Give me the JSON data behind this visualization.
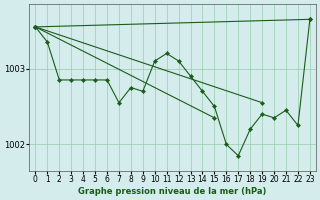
{
  "bg_color": "#d4ecec",
  "line_color": "#1a5c1a",
  "xlabel": "Graphe pression niveau de la mer (hPa)",
  "xlim": [
    -0.5,
    23.5
  ],
  "ylim": [
    1001.65,
    1003.85
  ],
  "yticks": [
    1002,
    1003
  ],
  "xticks": [
    0,
    1,
    2,
    3,
    4,
    5,
    6,
    7,
    8,
    9,
    10,
    11,
    12,
    13,
    14,
    15,
    16,
    17,
    18,
    19,
    20,
    21,
    22,
    23
  ],
  "series": [
    {
      "x": [
        0,
        23
      ],
      "y": [
        1003.55,
        1003.65
      ]
    },
    {
      "x": [
        0,
        19
      ],
      "y": [
        1003.55,
        1002.55
      ]
    },
    {
      "x": [
        0,
        15
      ],
      "y": [
        1003.55,
        1002.35
      ]
    },
    {
      "x": [
        0,
        1,
        2,
        3,
        4,
        5,
        6,
        7,
        8,
        9,
        10,
        11,
        12,
        13,
        14,
        15,
        16,
        17,
        18,
        19,
        20,
        21,
        22,
        23
      ],
      "y": [
        1003.55,
        1003.35,
        1002.85,
        1002.85,
        1002.85,
        1002.85,
        1002.85,
        1002.55,
        1002.75,
        1002.7,
        1003.1,
        1003.2,
        1003.1,
        1002.9,
        1002.7,
        1002.5,
        1002.0,
        1001.85,
        1002.2,
        1002.4,
        1002.35,
        1002.45,
        1002.25,
        1003.65
      ]
    }
  ]
}
